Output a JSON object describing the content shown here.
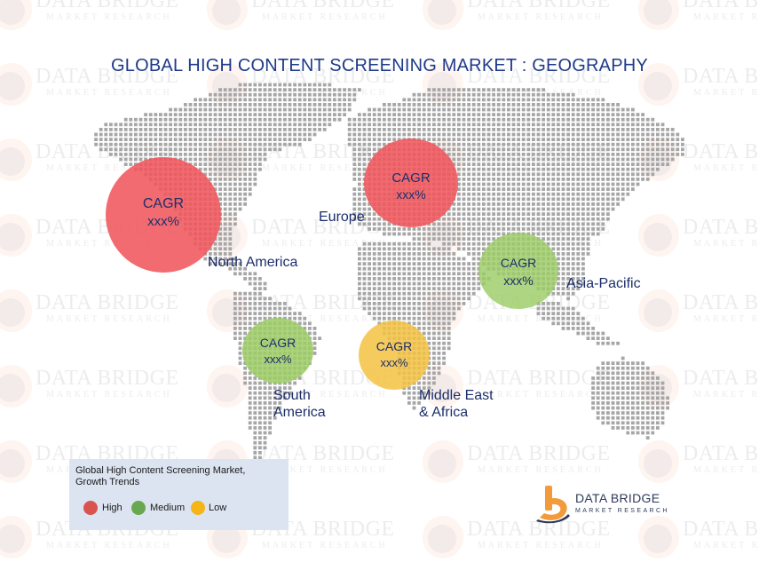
{
  "title": "GLOBAL HIGH CONTENT SCREENING MARKET : GEOGRAPHY",
  "watermark": {
    "line1": "DATA BRIDGE",
    "line2": "MARKET RESEARCH"
  },
  "bubbles": [
    {
      "id": "north-america",
      "cagr_label": "CAGR",
      "value": "xxx%",
      "growth": "High",
      "color": "#f0575c"
    },
    {
      "id": "europe",
      "cagr_label": "CAGR",
      "value": "xxx%",
      "growth": "High",
      "color": "#f0575c"
    },
    {
      "id": "asia-pacific",
      "cagr_label": "CAGR",
      "value": "xxx%",
      "growth": "Medium",
      "color": "#9ccc65"
    },
    {
      "id": "south-america",
      "cagr_label": "CAGR",
      "value": "xxx%",
      "growth": "Medium",
      "color": "#9ccc65"
    },
    {
      "id": "middle-east-africa",
      "cagr_label": "CAGR",
      "value": "xxx%",
      "growth": "Low",
      "color": "#f5c242"
    }
  ],
  "region_labels": {
    "north_america": "North America",
    "europe": "Europe",
    "asia_pacific": "Asia-Pacific",
    "south_america_1": "South",
    "south_america_2": "America",
    "mea_1": "Middle East",
    "mea_2": "& Africa"
  },
  "legend": {
    "title": "Global High Content Screening  Market, Growth Trends",
    "items": [
      {
        "label": "High",
        "color": "#d9534f"
      },
      {
        "label": "Medium",
        "color": "#6aa84f"
      },
      {
        "label": "Low",
        "color": "#f5b417"
      }
    ]
  },
  "logo": {
    "line1": "DATA BRIDGE",
    "line2": "MARKET RESEARCH",
    "colors": {
      "orange": "#f39a3c",
      "navy": "#2d3a5a"
    }
  },
  "map": {
    "dot_color": "#a6a6a6"
  }
}
